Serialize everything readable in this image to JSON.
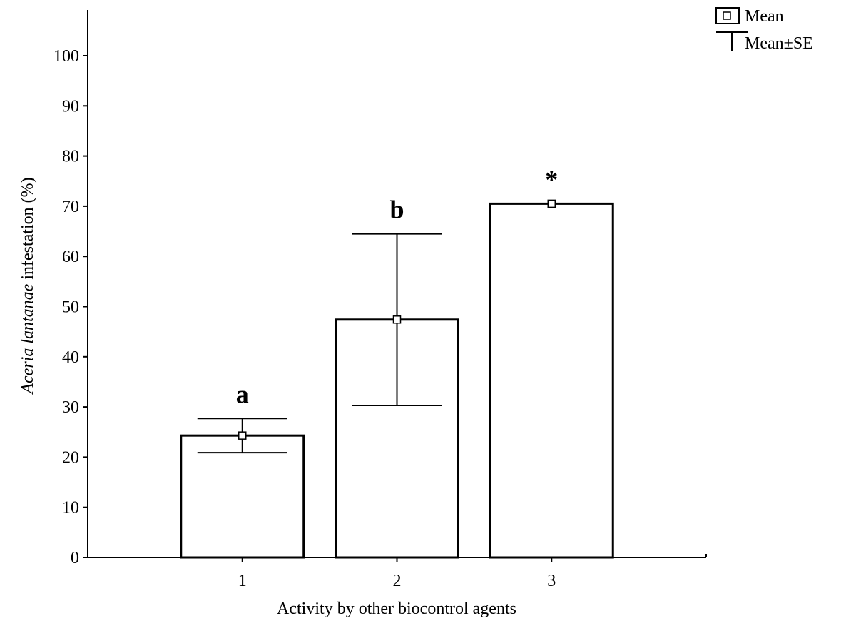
{
  "chart_data": {
    "type": "bar",
    "categories": [
      "1",
      "2",
      "3"
    ],
    "values": [
      24.3,
      47.4,
      70.5
    ],
    "se_upper": [
      27.7,
      64.5,
      70.5
    ],
    "se_lower": [
      20.9,
      30.3,
      70.5
    ],
    "significance": [
      "a",
      "b",
      "*"
    ],
    "xlabel": "Activity by other biocontrol agents",
    "ylabel_italic": "Aceria lantanae",
    "ylabel_rest": " infestation (%)",
    "ylim": [
      0,
      110
    ],
    "yticks": [
      0,
      10,
      20,
      30,
      40,
      50,
      60,
      70,
      80,
      90,
      100
    ],
    "xlim": [
      0,
      4
    ],
    "grid": false,
    "legend_position": "top-right",
    "legend": {
      "mean_label": "Mean",
      "se_label": "Mean±SE"
    }
  }
}
